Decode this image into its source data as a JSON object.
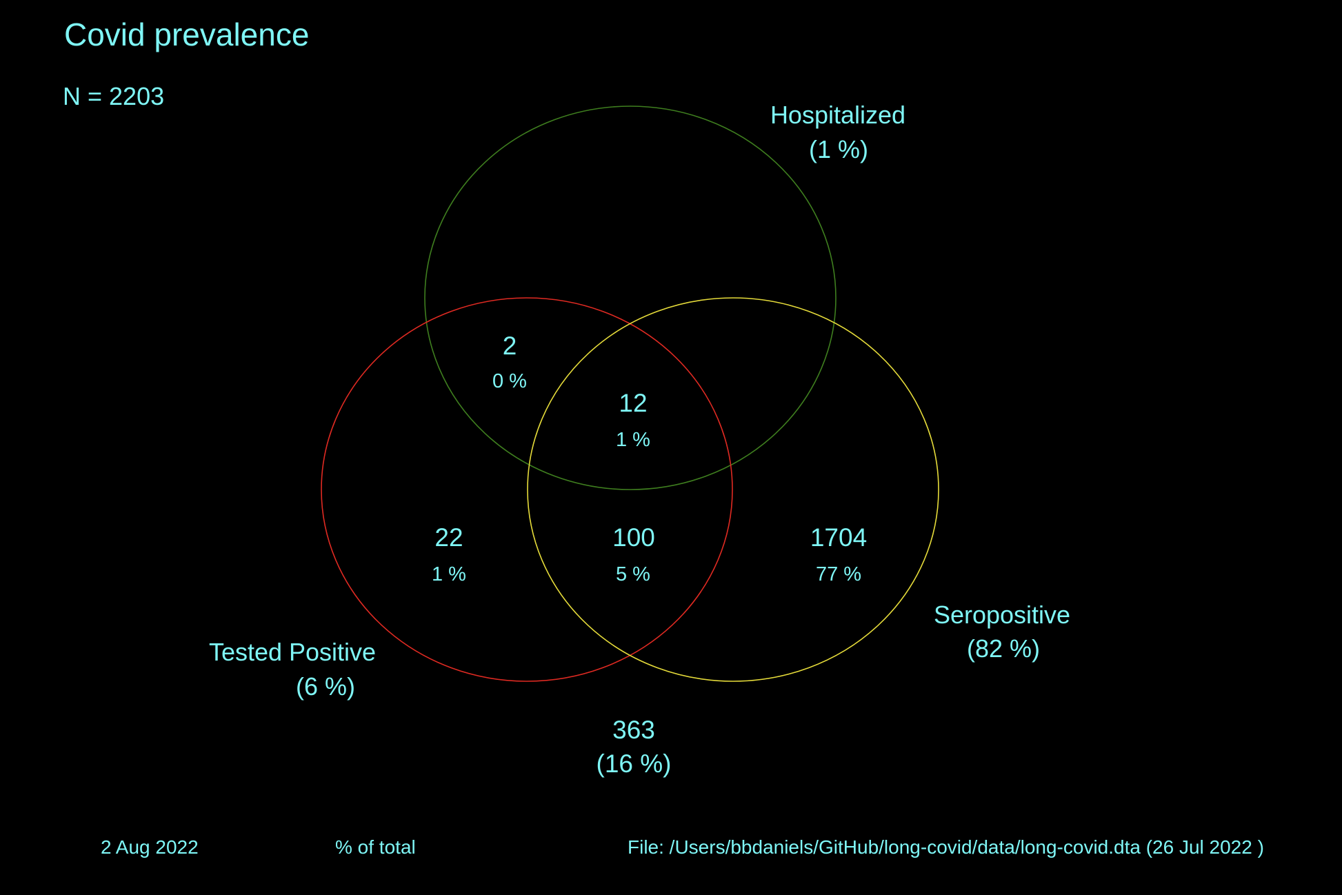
{
  "title": "Covid prevalence",
  "n_label": "N = 2203",
  "colors": {
    "background": "#000000",
    "text": "#7ff6f6",
    "hospitalized": "#3f7f1f",
    "tested_positive": "#e02a22",
    "seropositive": "#e6dc3a"
  },
  "sets": {
    "hospitalized": {
      "name": "Hospitalized",
      "pct": "(1 %)"
    },
    "tested_positive": {
      "name": "Tested Positive",
      "pct": "(6 %)"
    },
    "seropositive": {
      "name": "Seropositive",
      "pct": "(82 %)"
    }
  },
  "regions": {
    "hosp_tested": {
      "count": "2",
      "pct": "0 %"
    },
    "all_three": {
      "count": "12",
      "pct": "1 %"
    },
    "tested_only": {
      "count": "22",
      "pct": "1 %"
    },
    "tested_sero": {
      "count": "100",
      "pct": "5 %"
    },
    "sero_only": {
      "count": "1704",
      "pct": "77 %"
    },
    "none": {
      "count": "363",
      "pct": "(16 %)"
    }
  },
  "footer": {
    "date": "2 Aug 2022",
    "note": "% of total",
    "file": "File: /Users/bbdaniels/GitHub/long-covid/data/long-covid.dta (26 Jul 2022 )"
  }
}
